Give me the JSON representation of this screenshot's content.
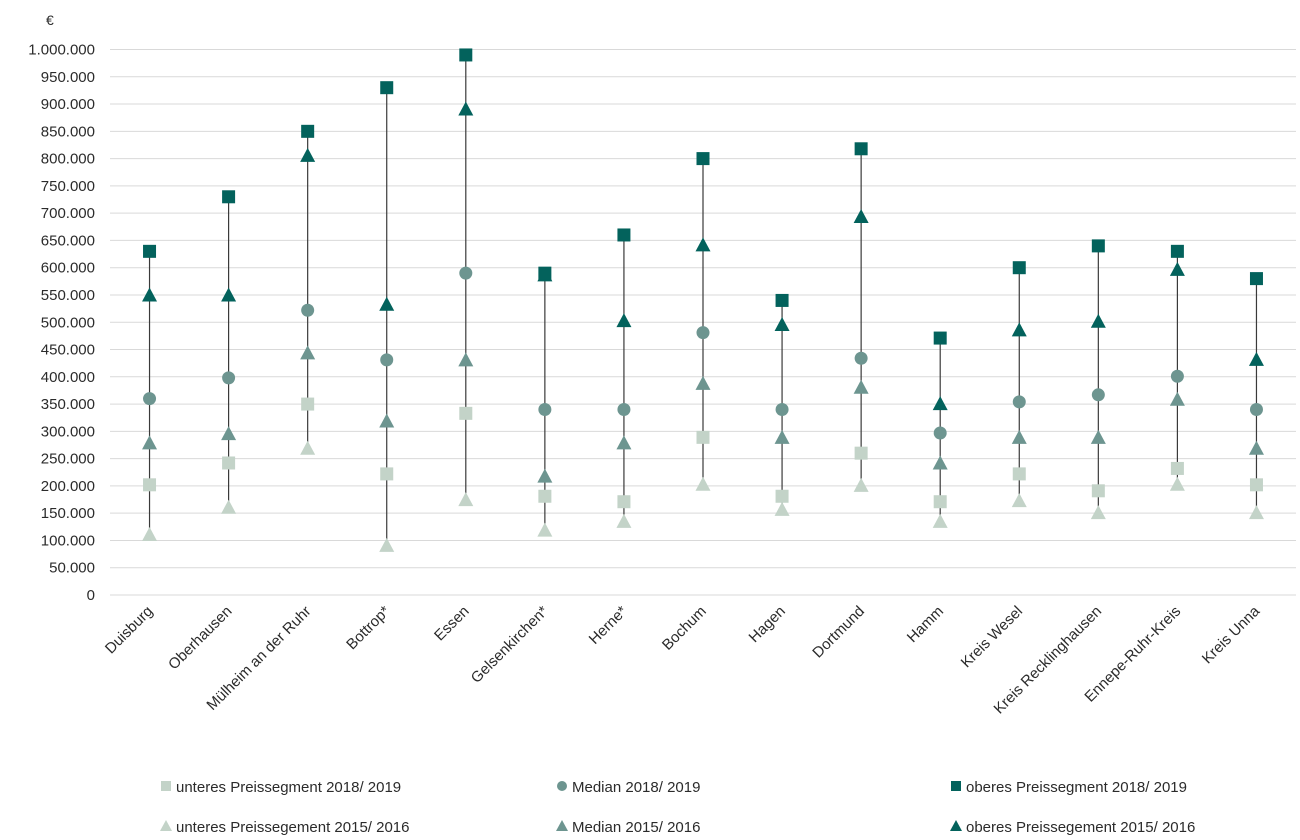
{
  "chart_data": {
    "type": "scatter",
    "ylabel": "€",
    "ylim": [
      0,
      1000000
    ],
    "y_ticks": [
      "0",
      "50.000",
      "100.000",
      "150.000",
      "200.000",
      "250.000",
      "300.000",
      "350.000",
      "400.000",
      "450.000",
      "500.000",
      "550.000",
      "600.000",
      "650.000",
      "700.000",
      "750.000",
      "800.000",
      "850.000",
      "900.000",
      "950.000",
      "1.000.000"
    ],
    "y_tick_values": [
      0,
      50000,
      100000,
      150000,
      200000,
      250000,
      300000,
      350000,
      400000,
      450000,
      500000,
      550000,
      600000,
      650000,
      700000,
      750000,
      800000,
      850000,
      900000,
      950000,
      1000000
    ],
    "grid": true,
    "legend_position": "bottom",
    "categories": [
      "Duisburg",
      "Oberhausen",
      "Mülheim an der Ruhr",
      "Bottrop*",
      "Essen",
      "Gelsenkirchen*",
      "Herne*",
      "Bochum",
      "Hagen",
      "Dortmund",
      "Hamm",
      "Kreis Wesel",
      "Kreis Recklinghausen",
      "Ennepe-Ruhr-Kreis",
      "Kreis Unna"
    ],
    "series": [
      {
        "name": "unteres Preissegment 2018/ 2019",
        "marker": "square",
        "color": "#c3d3c8",
        "values": [
          202000,
          242000,
          350000,
          222000,
          333000,
          181000,
          171000,
          289000,
          181000,
          260000,
          171000,
          222000,
          191000,
          232000,
          202000
        ]
      },
      {
        "name": "Median 2018/ 2019",
        "marker": "circle",
        "color": "#6d9590",
        "values": [
          360000,
          398000,
          522000,
          431000,
          590000,
          340000,
          340000,
          481000,
          340000,
          434000,
          297000,
          354000,
          367000,
          401000,
          340000
        ]
      },
      {
        "name": "oberes Preissegment 2018/ 2019",
        "marker": "square",
        "color": "#03625c",
        "values": [
          630000,
          730000,
          850000,
          930000,
          990000,
          590000,
          660000,
          800000,
          540000,
          818000,
          471000,
          600000,
          640000,
          630000,
          580000
        ]
      },
      {
        "name": "unteres Preissegement 2015/ 2016",
        "marker": "triangle",
        "color": "#c3d3c8",
        "values": [
          110000,
          160000,
          268000,
          90000,
          174000,
          118000,
          134000,
          202000,
          156000,
          200000,
          134000,
          172000,
          150000,
          202000,
          150000
        ]
      },
      {
        "name": "Median 2015/ 2016",
        "marker": "triangle",
        "color": "#6d9590",
        "values": [
          278000,
          295000,
          443000,
          318000,
          430000,
          217000,
          278000,
          387000,
          288000,
          380000,
          241000,
          288000,
          288000,
          358000,
          268000
        ]
      },
      {
        "name": "oberes Preissegement 2015/ 2016",
        "marker": "triangle",
        "color": "#03625c",
        "values": [
          549000,
          549000,
          805000,
          532000,
          890000,
          586000,
          502000,
          641000,
          495000,
          693000,
          350000,
          485000,
          501000,
          596000,
          431000
        ]
      }
    ],
    "legend_order": [
      0,
      1,
      2,
      3,
      4,
      5
    ],
    "line_color": "#3a3a3a",
    "grid_color": "#d9d9d9"
  }
}
